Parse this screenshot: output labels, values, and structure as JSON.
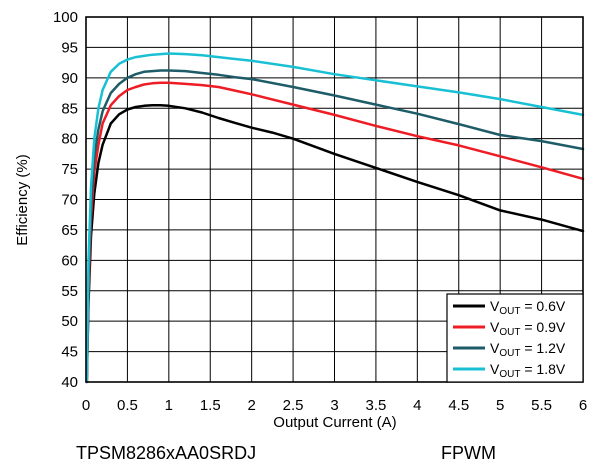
{
  "colors": {
    "series": [
      "#000000",
      "#ee1c24",
      "#1e5c68",
      "#19c0d4"
    ],
    "grid": "#000000",
    "background": "#ffffff"
  },
  "captions": {
    "device": "TPSM8286xAA0SRDJ",
    "mode": "FPWM"
  },
  "chart_data": {
    "type": "line",
    "title": "",
    "xlabel": "Output Current (A)",
    "ylabel": "Efficiency (%)",
    "xlim": [
      0,
      6
    ],
    "ylim": [
      40,
      100
    ],
    "xticks": [
      0,
      0.5,
      1,
      1.5,
      2,
      2.5,
      3,
      3.5,
      4,
      4.5,
      5,
      5.5,
      6
    ],
    "xtick_labels": [
      "0",
      "0.5",
      "1",
      "1.5",
      "2",
      "2.5",
      "3",
      "3.5",
      "4",
      "4.5",
      "5",
      "5.5",
      "6"
    ],
    "yticks": [
      40,
      45,
      50,
      55,
      60,
      65,
      70,
      75,
      80,
      85,
      90,
      95,
      100
    ],
    "ytick_labels": [
      "40",
      "45",
      "50",
      "55",
      "60",
      "65",
      "70",
      "75",
      "80",
      "85",
      "90",
      "95",
      "100"
    ],
    "grid": true,
    "legend_position": "bottom-right",
    "series": [
      {
        "name_main": "V",
        "name_sub": "OUT",
        "name_rest": " = 0.6V",
        "x": [
          0.01,
          0.03,
          0.06,
          0.1,
          0.15,
          0.2,
          0.3,
          0.4,
          0.5,
          0.6,
          0.7,
          0.8,
          0.9,
          1.0,
          1.2,
          1.4,
          1.6,
          1.8,
          2.0,
          2.25,
          2.5,
          3.0,
          3.5,
          4.0,
          4.5,
          5.0,
          5.5,
          6.0
        ],
        "y": [
          40,
          53,
          64,
          71,
          76,
          79,
          82.5,
          84,
          84.8,
          85.2,
          85.4,
          85.5,
          85.5,
          85.4,
          85,
          84.3,
          83.4,
          82.6,
          81.8,
          81,
          80,
          77.5,
          75.2,
          72.9,
          70.7,
          68.2,
          66.7,
          64.8
        ]
      },
      {
        "name_main": "V",
        "name_sub": "OUT",
        "name_rest": " = 0.9V",
        "x": [
          0.01,
          0.03,
          0.06,
          0.1,
          0.15,
          0.2,
          0.3,
          0.4,
          0.5,
          0.6,
          0.7,
          0.8,
          0.9,
          1.0,
          1.2,
          1.4,
          1.6,
          1.8,
          2.0,
          2.5,
          3.0,
          3.5,
          4.0,
          4.5,
          5.0,
          5.5,
          6.0
        ],
        "y": [
          40,
          55,
          67,
          74.5,
          79,
          82.5,
          85.5,
          87,
          88,
          88.5,
          88.9,
          89.1,
          89.2,
          89.2,
          89,
          88.8,
          88.5,
          87.9,
          87.3,
          85.6,
          83.9,
          82.1,
          80.4,
          78.9,
          77.1,
          75.3,
          73.4
        ]
      },
      {
        "name_main": "V",
        "name_sub": "OUT",
        "name_rest": " = 1.2V",
        "x": [
          0.01,
          0.03,
          0.06,
          0.1,
          0.15,
          0.2,
          0.3,
          0.4,
          0.5,
          0.6,
          0.7,
          0.8,
          0.9,
          1.0,
          1.2,
          1.4,
          1.6,
          1.8,
          2.0,
          2.5,
          3.0,
          3.5,
          4.0,
          4.5,
          5.0,
          5.5,
          6.0
        ],
        "y": [
          40,
          57,
          69,
          77,
          81.5,
          84.5,
          87.5,
          89,
          90,
          90.6,
          91,
          91.1,
          91.2,
          91.2,
          91.1,
          90.8,
          90.5,
          90.1,
          89.8,
          88.5,
          87.1,
          85.6,
          84.1,
          82.4,
          80.6,
          79.6,
          78.3
        ]
      },
      {
        "name_main": "V",
        "name_sub": "OUT",
        "name_rest": " = 1.8V",
        "x": [
          0.01,
          0.03,
          0.06,
          0.1,
          0.15,
          0.2,
          0.3,
          0.4,
          0.5,
          0.6,
          0.7,
          0.8,
          0.9,
          1.0,
          1.2,
          1.4,
          1.6,
          1.8,
          2.0,
          2.5,
          3.0,
          3.5,
          4.0,
          4.5,
          5.0,
          5.5,
          6.0
        ],
        "y": [
          40,
          60,
          72,
          80,
          85,
          88,
          91,
          92.3,
          93,
          93.4,
          93.6,
          93.8,
          93.9,
          94,
          93.9,
          93.7,
          93.4,
          93.1,
          92.8,
          91.8,
          90.6,
          89.6,
          88.6,
          87.6,
          86.5,
          85.2,
          83.9
        ]
      }
    ]
  }
}
